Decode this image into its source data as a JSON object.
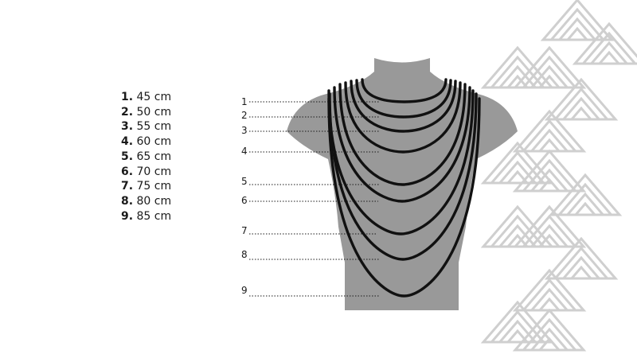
{
  "legend": [
    {
      "num": "1.",
      "length": "45 cm"
    },
    {
      "num": "2.",
      "length": "50 cm"
    },
    {
      "num": "3.",
      "length": "55 cm"
    },
    {
      "num": "4.",
      "length": "60 cm"
    },
    {
      "num": "5.",
      "length": "65 cm"
    },
    {
      "num": "6.",
      "length": "70 cm"
    },
    {
      "num": "7.",
      "length": "75 cm"
    },
    {
      "num": "8.",
      "length": "80 cm"
    },
    {
      "num": "9.",
      "length": "85 cm"
    }
  ],
  "callouts": [
    "1",
    "2",
    "3",
    "4",
    "5",
    "6",
    "7",
    "8",
    "9"
  ],
  "colors": {
    "bust": "#999999",
    "chain": "#111111",
    "pattern": "#cfcfcf",
    "text": "#1a1a1a"
  }
}
